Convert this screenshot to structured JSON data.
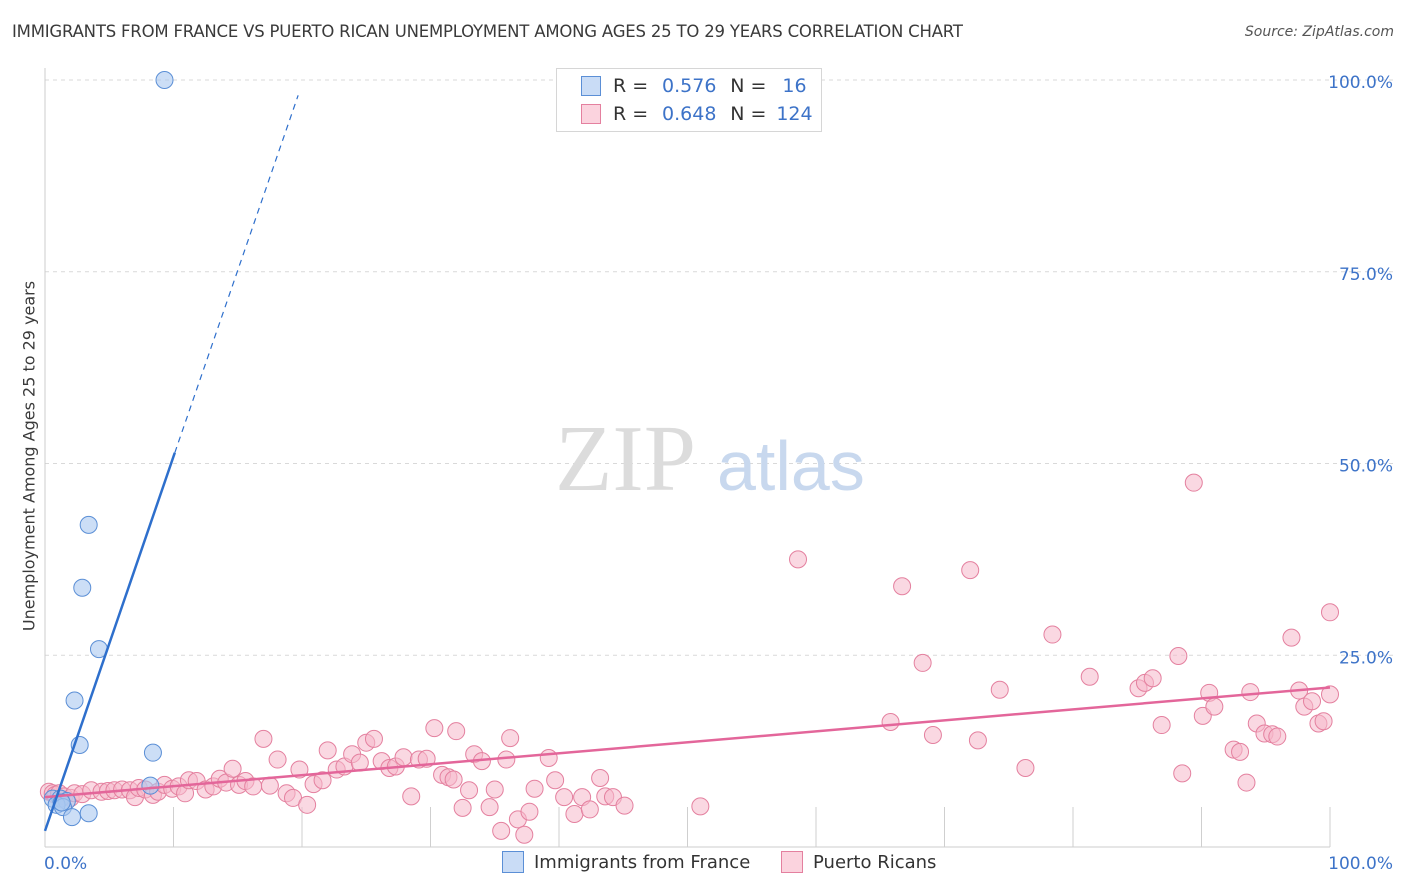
{
  "title": "IMMIGRANTS FROM FRANCE VS PUERTO RICAN UNEMPLOYMENT AMONG AGES 25 TO 29 YEARS CORRELATION CHART",
  "source": "Source: ZipAtlas.com",
  "watermark": {
    "zip": "ZIP",
    "atlas": "atlas"
  },
  "colors": {
    "france_fill": "#aac8f0",
    "france_stroke": "#5b8fd6",
    "france_line": "#2e6fcc",
    "pr_fill": "#f6b8cb",
    "pr_stroke": "#e4809f",
    "pr_line": "#e3669a",
    "value_text": "#3d73c8",
    "grid": "#d9d9d9"
  },
  "legend_top": [
    {
      "r_label": "R =",
      "r_value": "0.576",
      "n_label": "N =",
      "n_value": "16"
    },
    {
      "r_label": "R =",
      "r_value": "0.648",
      "n_label": "N =",
      "n_value": "124"
    }
  ],
  "chart_data": {
    "type": "scatter",
    "title": "IMMIGRANTS FROM FRANCE VS PUERTO RICAN UNEMPLOYMENT AMONG AGES 25 TO 29 YEARS CORRELATION CHART",
    "xlabel": "",
    "ylabel": "Unemployment Among Ages 25 to 29 years",
    "xlim": [
      0,
      100
    ],
    "ylim": [
      0,
      102
    ],
    "x_tick_labels": [
      {
        "value": 0,
        "label": "0.0%"
      },
      {
        "value": 100,
        "label": "100.0%"
      }
    ],
    "y_tick_labels": [
      {
        "value": 25,
        "label": "25.0%"
      },
      {
        "value": 50,
        "label": "50.0%"
      },
      {
        "value": 75,
        "label": "75.0%"
      },
      {
        "value": 100,
        "label": "100.0%"
      }
    ],
    "grid": true,
    "legend_position": "bottom",
    "series": [
      {
        "name": "Immigrants from France",
        "color": "#aac8f0",
        "trend": {
          "x0": 0,
          "y0": 2.1,
          "x1": 10.1,
          "y1": 51.4,
          "dash_to_x": 19.7,
          "dash_to_y": 98.0
        },
        "points": [
          [
            9.3,
            100.0
          ],
          [
            3.4,
            42.0
          ],
          [
            2.9,
            33.8
          ],
          [
            4.2,
            25.8
          ],
          [
            2.3,
            19.1
          ],
          [
            2.7,
            13.3
          ],
          [
            8.4,
            12.3
          ],
          [
            8.2,
            8.0
          ],
          [
            0.6,
            6.3
          ],
          [
            1.2,
            6.3
          ],
          [
            1.7,
            6.0
          ],
          [
            0.9,
            5.5
          ],
          [
            1.4,
            5.2
          ],
          [
            1.3,
            5.8
          ],
          [
            2.1,
            3.9
          ],
          [
            3.4,
            4.4
          ]
        ]
      },
      {
        "name": "Puerto Ricans",
        "color": "#f6b8cb",
        "trend": {
          "x0": 0,
          "y0": 6.5,
          "x1": 100,
          "y1": 20.8
        },
        "points": [
          [
            0.3,
            7.2
          ],
          [
            0.6,
            7.0
          ],
          [
            0.8,
            6.8
          ],
          [
            1.1,
            7.0
          ],
          [
            1.5,
            6.6
          ],
          [
            2.0,
            6.4
          ],
          [
            2.3,
            7.0
          ],
          [
            2.9,
            6.9
          ],
          [
            3.6,
            7.4
          ],
          [
            4.4,
            7.2
          ],
          [
            4.9,
            7.3
          ],
          [
            5.4,
            7.4
          ],
          [
            6.0,
            7.5
          ],
          [
            6.6,
            7.4
          ],
          [
            7.0,
            6.5
          ],
          [
            7.3,
            7.7
          ],
          [
            7.8,
            7.5
          ],
          [
            8.4,
            6.8
          ],
          [
            8.8,
            7.2
          ],
          [
            9.3,
            8.1
          ],
          [
            9.9,
            7.6
          ],
          [
            10.4,
            7.9
          ],
          [
            10.9,
            7.0
          ],
          [
            11.2,
            8.7
          ],
          [
            11.8,
            8.6
          ],
          [
            12.5,
            7.5
          ],
          [
            13.1,
            7.9
          ],
          [
            13.6,
            8.9
          ],
          [
            14.1,
            8.4
          ],
          [
            14.6,
            10.2
          ],
          [
            15.1,
            8.1
          ],
          [
            15.6,
            8.6
          ],
          [
            16.2,
            7.9
          ],
          [
            17.0,
            14.1
          ],
          [
            17.5,
            8.0
          ],
          [
            18.1,
            11.4
          ],
          [
            18.8,
            7.0
          ],
          [
            19.3,
            6.4
          ],
          [
            19.8,
            10.1
          ],
          [
            20.4,
            5.5
          ],
          [
            20.9,
            8.2
          ],
          [
            21.6,
            8.7
          ],
          [
            22.0,
            12.6
          ],
          [
            22.7,
            10.1
          ],
          [
            23.3,
            10.5
          ],
          [
            23.9,
            12.1
          ],
          [
            24.5,
            11.0
          ],
          [
            25.0,
            13.6
          ],
          [
            25.6,
            14.1
          ],
          [
            26.2,
            11.2
          ],
          [
            26.8,
            10.3
          ],
          [
            27.3,
            10.5
          ],
          [
            27.9,
            11.7
          ],
          [
            28.5,
            6.6
          ],
          [
            29.1,
            11.4
          ],
          [
            29.7,
            11.5
          ],
          [
            30.3,
            15.5
          ],
          [
            30.9,
            9.4
          ],
          [
            31.4,
            9.1
          ],
          [
            31.8,
            8.8
          ],
          [
            32.0,
            15.1
          ],
          [
            32.5,
            5.1
          ],
          [
            33.0,
            7.4
          ],
          [
            33.4,
            12.1
          ],
          [
            34.0,
            11.2
          ],
          [
            34.6,
            5.2
          ],
          [
            35.0,
            7.5
          ],
          [
            35.5,
            2.1
          ],
          [
            35.9,
            11.4
          ],
          [
            36.2,
            14.2
          ],
          [
            36.8,
            3.6
          ],
          [
            37.3,
            1.6
          ],
          [
            37.7,
            4.6
          ],
          [
            38.1,
            7.6
          ],
          [
            39.2,
            11.6
          ],
          [
            39.7,
            8.7
          ],
          [
            40.4,
            6.5
          ],
          [
            41.2,
            4.3
          ],
          [
            41.8,
            6.5
          ],
          [
            42.4,
            4.9
          ],
          [
            43.2,
            9.0
          ],
          [
            43.6,
            6.6
          ],
          [
            44.2,
            6.5
          ],
          [
            45.1,
            5.4
          ],
          [
            51.0,
            5.3
          ],
          [
            58.6,
            37.5
          ],
          [
            65.8,
            16.3
          ],
          [
            66.7,
            34.0
          ],
          [
            68.3,
            24.0
          ],
          [
            69.1,
            14.6
          ],
          [
            72.0,
            36.1
          ],
          [
            72.6,
            13.9
          ],
          [
            74.3,
            20.5
          ],
          [
            76.3,
            10.3
          ],
          [
            78.4,
            27.7
          ],
          [
            81.3,
            22.2
          ],
          [
            85.1,
            20.7
          ],
          [
            85.6,
            21.4
          ],
          [
            86.2,
            22.0
          ],
          [
            86.9,
            15.9
          ],
          [
            88.2,
            24.9
          ],
          [
            88.5,
            9.6
          ],
          [
            89.4,
            47.5
          ],
          [
            90.1,
            17.1
          ],
          [
            90.6,
            20.1
          ],
          [
            91.0,
            18.3
          ],
          [
            92.5,
            12.7
          ],
          [
            93.0,
            12.4
          ],
          [
            93.5,
            8.4
          ],
          [
            93.8,
            20.2
          ],
          [
            94.3,
            16.1
          ],
          [
            94.9,
            14.8
          ],
          [
            95.5,
            14.7
          ],
          [
            95.9,
            14.4
          ],
          [
            97.0,
            27.3
          ],
          [
            97.6,
            20.4
          ],
          [
            98.0,
            18.3
          ],
          [
            98.6,
            19.0
          ],
          [
            99.1,
            16.1
          ],
          [
            99.5,
            16.4
          ],
          [
            100.0,
            19.9
          ],
          [
            100.0,
            30.6
          ]
        ]
      }
    ]
  }
}
